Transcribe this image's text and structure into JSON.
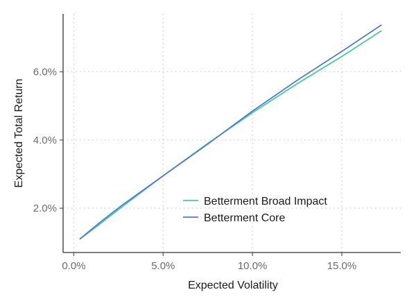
{
  "chart_data": {
    "type": "line",
    "xlabel": "Expected Volatility",
    "ylabel": "Expected Total Return",
    "xlim": [
      -0.6,
      18.3
    ],
    "ylim": [
      0.7,
      7.7
    ],
    "x_ticks": [
      {
        "value": 0.0,
        "label": "0.0%"
      },
      {
        "value": 5.0,
        "label": "5.0%"
      },
      {
        "value": 10.0,
        "label": "10.0%"
      },
      {
        "value": 15.0,
        "label": "15.0%"
      }
    ],
    "y_ticks": [
      {
        "value": 2.0,
        "label": "2.0%"
      },
      {
        "value": 4.0,
        "label": "4.0%"
      },
      {
        "value": 6.0,
        "label": "6.0%"
      }
    ],
    "grid": true,
    "legend_position": "lower-right",
    "series": [
      {
        "name": "Betterment Broad Impact",
        "color": "#3ecf97",
        "points": [
          [
            0.35,
            1.1
          ],
          [
            1.5,
            1.55
          ],
          [
            2.6,
            2.0
          ],
          [
            5.0,
            2.95
          ],
          [
            7.5,
            3.9
          ],
          [
            10.0,
            4.8
          ],
          [
            12.5,
            5.65
          ],
          [
            15.0,
            6.45
          ],
          [
            17.2,
            7.2
          ]
        ]
      },
      {
        "name": "Betterment Core",
        "color": "#5676d4",
        "points": [
          [
            0.35,
            1.1
          ],
          [
            1.5,
            1.6
          ],
          [
            2.6,
            2.05
          ],
          [
            5.0,
            2.95
          ],
          [
            7.5,
            3.88
          ],
          [
            10.0,
            4.85
          ],
          [
            12.5,
            5.75
          ],
          [
            15.0,
            6.6
          ],
          [
            17.2,
            7.37
          ]
        ]
      }
    ]
  }
}
